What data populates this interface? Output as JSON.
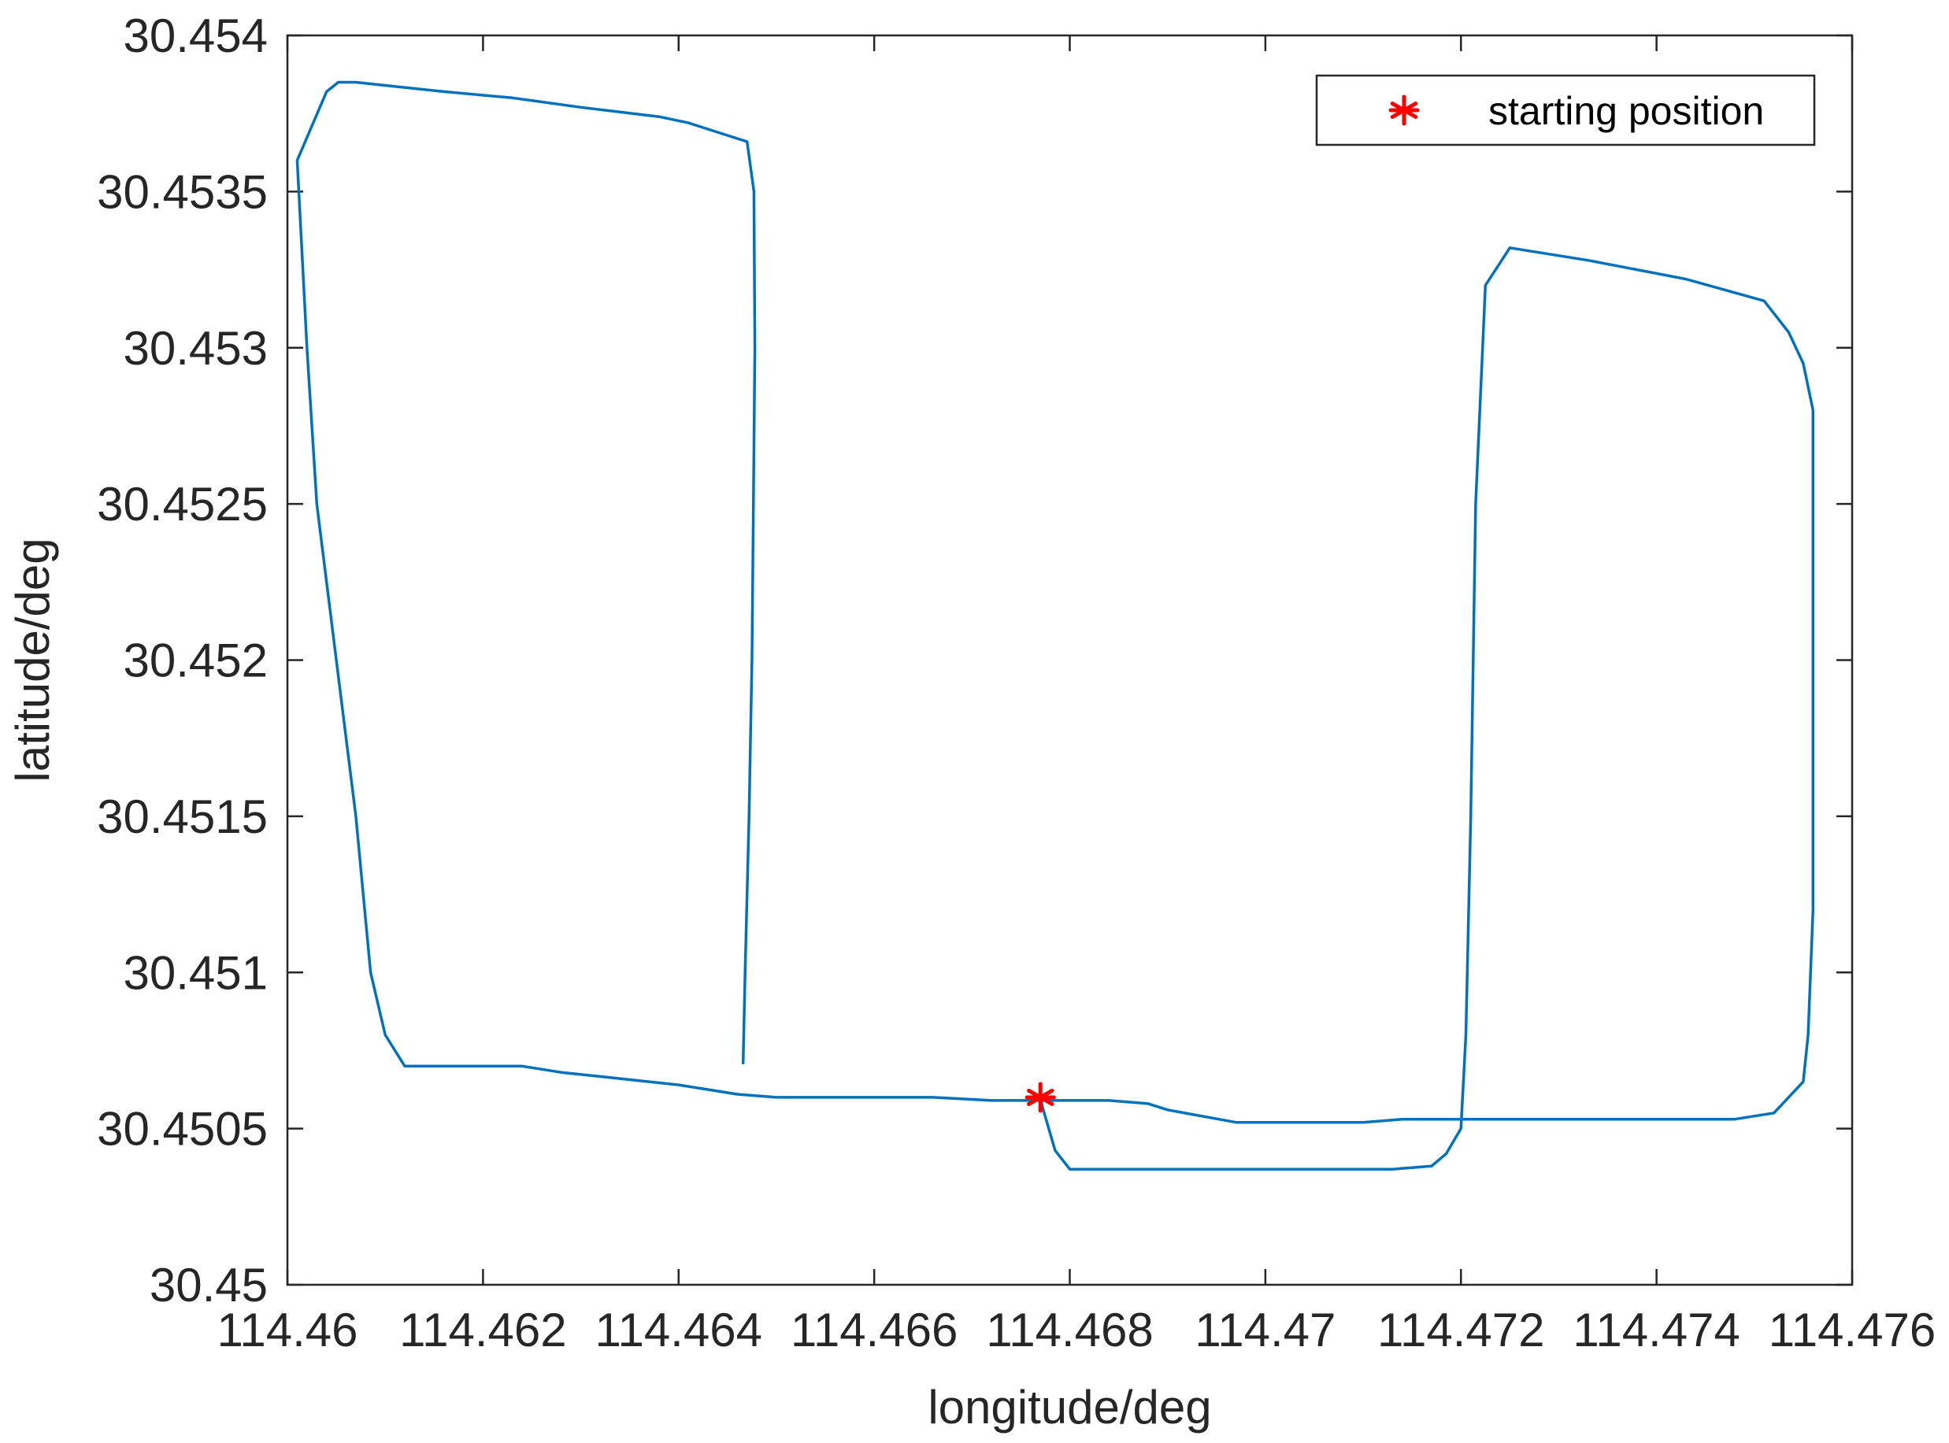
{
  "chart_data": {
    "type": "line",
    "title": "",
    "xlabel": "longitude/deg",
    "ylabel": "latitude/deg",
    "xlim": [
      114.46,
      114.476
    ],
    "ylim": [
      30.45,
      30.454
    ],
    "x_ticks": [
      "114.46",
      "114.462",
      "114.464",
      "114.466",
      "114.468",
      "114.47",
      "114.472",
      "114.474",
      "114.476"
    ],
    "y_ticks": [
      "30.45",
      "30.4505",
      "30.451",
      "30.4515",
      "30.452",
      "30.4525",
      "30.453",
      "30.4535",
      "30.454"
    ],
    "grid": false,
    "legend_position": "top-right",
    "colors": {
      "track": "#0072BD",
      "start_marker": "#FF0000"
    },
    "series": [
      {
        "type": "line",
        "x": [
          114.4677,
          114.46772,
          114.46785,
          114.468,
          114.4686,
          114.4688,
          114.4697,
          114.4705,
          114.4713,
          114.4717,
          114.47185,
          114.472,
          114.47205,
          114.4721,
          114.47215,
          114.47225,
          114.4725,
          114.4733,
          114.4743,
          114.4751,
          114.47535,
          114.4755,
          114.4756,
          114.4756,
          114.4756,
          114.47555,
          114.4755,
          114.4752,
          114.4748,
          114.474,
          114.473,
          114.472,
          114.4714,
          114.471,
          114.4702,
          114.4697,
          114.469,
          114.4688,
          114.4684,
          114.468,
          114.4672,
          114.4666,
          114.466,
          114.4654,
          114.465,
          114.4646,
          114.464,
          114.4634,
          114.4628,
          114.4624,
          114.4618,
          114.4616,
          114.4612,
          114.461,
          114.46085,
          114.4607,
          114.4605,
          114.4603,
          114.4602,
          114.4601,
          114.4604,
          114.46052,
          114.4607,
          114.461,
          114.4616,
          114.4623,
          114.463,
          114.4638,
          114.4641,
          114.4645,
          114.4647,
          114.46477,
          114.46478,
          114.46475,
          114.46472,
          114.46468,
          114.46466
        ],
        "y": [
          30.4506,
          30.45057,
          30.45043,
          30.45037,
          30.45037,
          30.45037,
          30.45037,
          30.45037,
          30.45037,
          30.45038,
          30.45042,
          30.4505,
          30.4508,
          30.4515,
          30.4525,
          30.4532,
          30.45332,
          30.45328,
          30.45322,
          30.45315,
          30.45305,
          30.45295,
          30.4528,
          30.4525,
          30.4512,
          30.4508,
          30.45065,
          30.45055,
          30.45053,
          30.45053,
          30.45053,
          30.45053,
          30.45053,
          30.45052,
          30.45052,
          30.45052,
          30.45056,
          30.45058,
          30.45059,
          30.45059,
          30.45059,
          30.4506,
          30.4506,
          30.4506,
          30.4506,
          30.45061,
          30.45064,
          30.45066,
          30.45068,
          30.4507,
          30.4507,
          30.4507,
          30.4507,
          30.4508,
          30.451,
          30.4515,
          30.452,
          30.4525,
          30.453,
          30.4536,
          30.45382,
          30.45385,
          30.45385,
          30.45384,
          30.45382,
          30.4538,
          30.45377,
          30.45374,
          30.45372,
          30.45368,
          30.45366,
          30.4535,
          30.453,
          30.452,
          30.4515,
          30.451,
          30.45071
        ]
      },
      {
        "name": "starting position",
        "type": "scatter",
        "marker": "asterisk",
        "x": [
          114.4677
        ],
        "y": [
          30.4506
        ]
      }
    ]
  }
}
